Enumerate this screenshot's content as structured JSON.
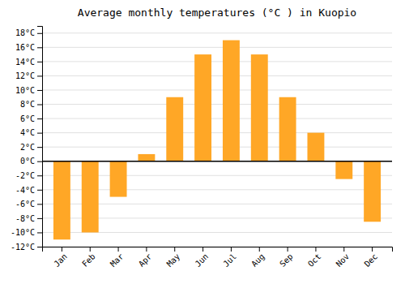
{
  "chart_data": {
    "type": "bar",
    "title": "Average monthly temperatures (°C ) in Kuopio",
    "categories": [
      "Jan",
      "Feb",
      "Mar",
      "Apr",
      "May",
      "Jun",
      "Jul",
      "Aug",
      "Sep",
      "Oct",
      "Nov",
      "Dec"
    ],
    "values": [
      -11,
      -10,
      -5,
      1,
      9,
      15,
      17,
      15,
      9,
      4,
      -2.5,
      -8.5
    ],
    "color": "#FFA726",
    "ylim": [
      -12,
      19
    ],
    "yticks": [
      {
        "value": -12,
        "label": "-12°C"
      },
      {
        "value": -10,
        "label": "-10°C"
      },
      {
        "value": -8,
        "label": "-8°C"
      },
      {
        "value": -6,
        "label": "-6°C"
      },
      {
        "value": -4,
        "label": "-4°C"
      },
      {
        "value": -2,
        "label": "-2°C"
      },
      {
        "value": 0,
        "label": "0°C"
      },
      {
        "value": 2,
        "label": "2°C"
      },
      {
        "value": 4,
        "label": "4°C"
      },
      {
        "value": 6,
        "label": "6°C"
      },
      {
        "value": 8,
        "label": "8°C"
      },
      {
        "value": 10,
        "label": "10°C"
      },
      {
        "value": 12,
        "label": "12°C"
      },
      {
        "value": 14,
        "label": "14°C"
      },
      {
        "value": 16,
        "label": "16°C"
      },
      {
        "value": 18,
        "label": "18°C"
      }
    ],
    "grid": true
  }
}
